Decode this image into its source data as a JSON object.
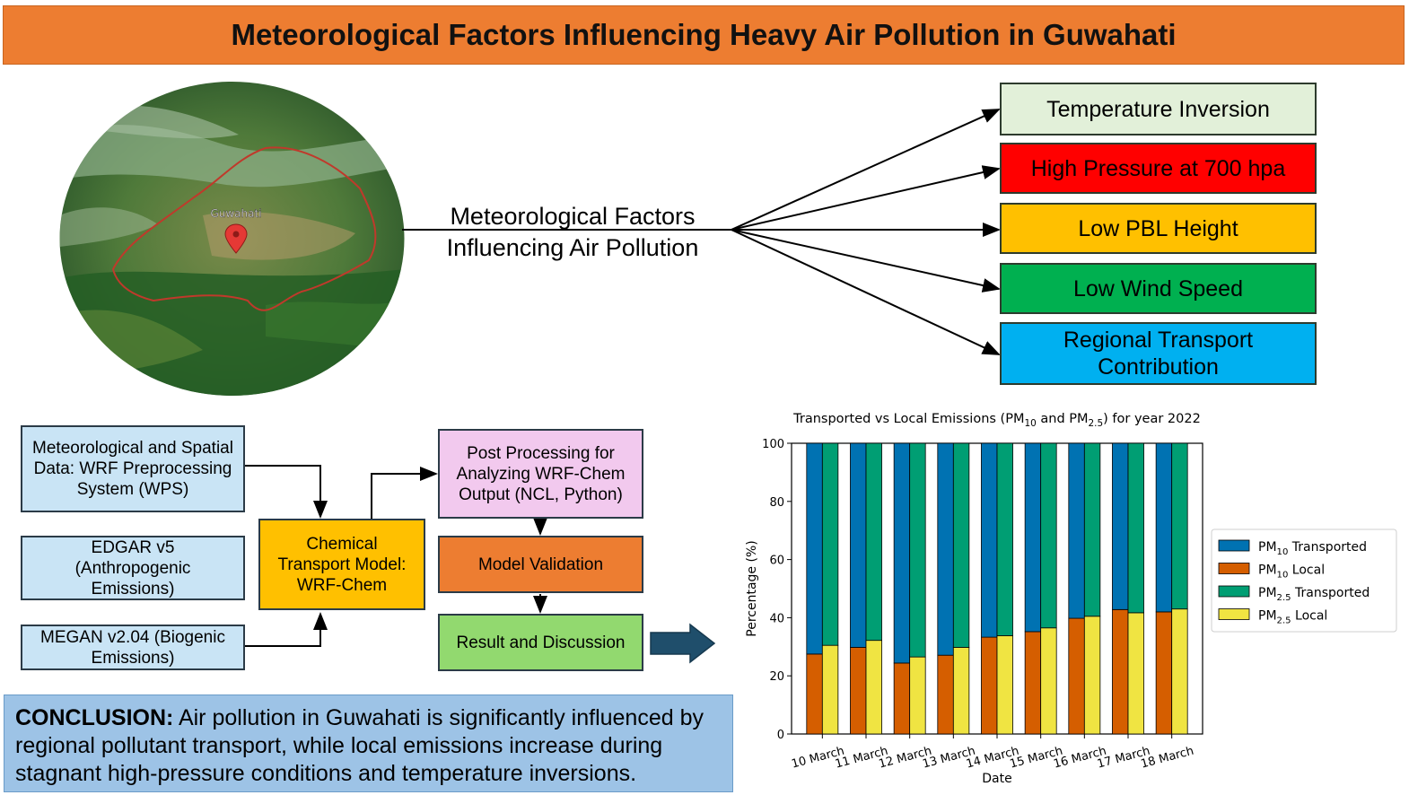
{
  "header": {
    "title": "Meteorological Factors Influencing Heavy Air Pollution in Guwahati"
  },
  "map": {
    "place_label": "Guwahati",
    "marker_icon": "location-pin-icon"
  },
  "center": {
    "line1": "Meteorological Factors",
    "line2": "Influencing Air Pollution"
  },
  "factors": [
    {
      "label": "Temperature Inversion",
      "color": "#E2F0D9"
    },
    {
      "label": "High Pressure at 700 hpa",
      "color": "#FF0000"
    },
    {
      "label": "Low PBL Height",
      "color": "#FFC000"
    },
    {
      "label": "Low Wind Speed",
      "color": "#00B050"
    },
    {
      "label": "Regional Transport Contribution",
      "color": "#00B0F0"
    }
  ],
  "flow": {
    "inputs": [
      "Meteorological and Spatial Data: WRF Preprocessing System (WPS)",
      "EDGAR v5 (Anthropogenic Emissions)",
      "MEGAN v2.04 (Biogenic Emissions)"
    ],
    "model": "Chemical Transport Model: WRF-Chem",
    "post": "Post Processing for Analyzing WRF-Chem Output (NCL, Python)",
    "validation": "Model Validation",
    "result": "Result and Discussion",
    "colors": {
      "input": "#C9E4F5",
      "model": "#FFC000",
      "post": "#F2C9EE",
      "validation": "#ED7D31",
      "result": "#92D96F",
      "arrow": "#1F4E6B"
    }
  },
  "conclusion": {
    "label": "CONCLUSION:",
    "text": " Air pollution in Guwahati is significantly influenced by regional pollutant transport, while local emissions increase during stagnant high-pressure conditions and temperature inversions."
  },
  "chart_data": {
    "type": "bar",
    "stacked": true,
    "title_parts": [
      "Transported vs Local Emissions (PM",
      "10",
      " and PM",
      "2.5",
      ") for year 2022"
    ],
    "xlabel": "Date",
    "ylabel": "Percentage (%)",
    "ylim": [
      0,
      100
    ],
    "yticks": [
      0,
      20,
      40,
      60,
      80,
      100
    ],
    "categories": [
      "10 March",
      "11 March",
      "12 March",
      "13 March",
      "14 March",
      "15 March",
      "16 March",
      "17 March",
      "18 March"
    ],
    "legend_position": "right",
    "series": [
      {
        "name": [
          "PM",
          "10",
          " Transported"
        ],
        "group": "PM10",
        "component": "transported",
        "color": "#0072B2",
        "values": [
          72.5,
          70.2,
          75.6,
          72.9,
          66.7,
          64.8,
          60.2,
          57.2,
          58
        ]
      },
      {
        "name": [
          "PM",
          "10",
          " Local"
        ],
        "group": "PM10",
        "component": "local",
        "color": "#D55E00",
        "values": [
          27.5,
          29.8,
          24.4,
          27.1,
          33.3,
          35.2,
          39.8,
          42.8,
          42
        ]
      },
      {
        "name": [
          "PM",
          "2.5",
          " Transported"
        ],
        "group": "PM2.5",
        "component": "transported",
        "color": "#009E73",
        "values": [
          69.5,
          67.8,
          73.5,
          70.2,
          66.2,
          63.5,
          59.5,
          58.3,
          57
        ]
      },
      {
        "name": [
          "PM",
          "2.5",
          " Local"
        ],
        "group": "PM2.5",
        "component": "local",
        "color": "#F0E442",
        "values": [
          30.5,
          32.2,
          26.5,
          29.8,
          33.8,
          36.5,
          40.5,
          41.7,
          43
        ]
      }
    ]
  }
}
